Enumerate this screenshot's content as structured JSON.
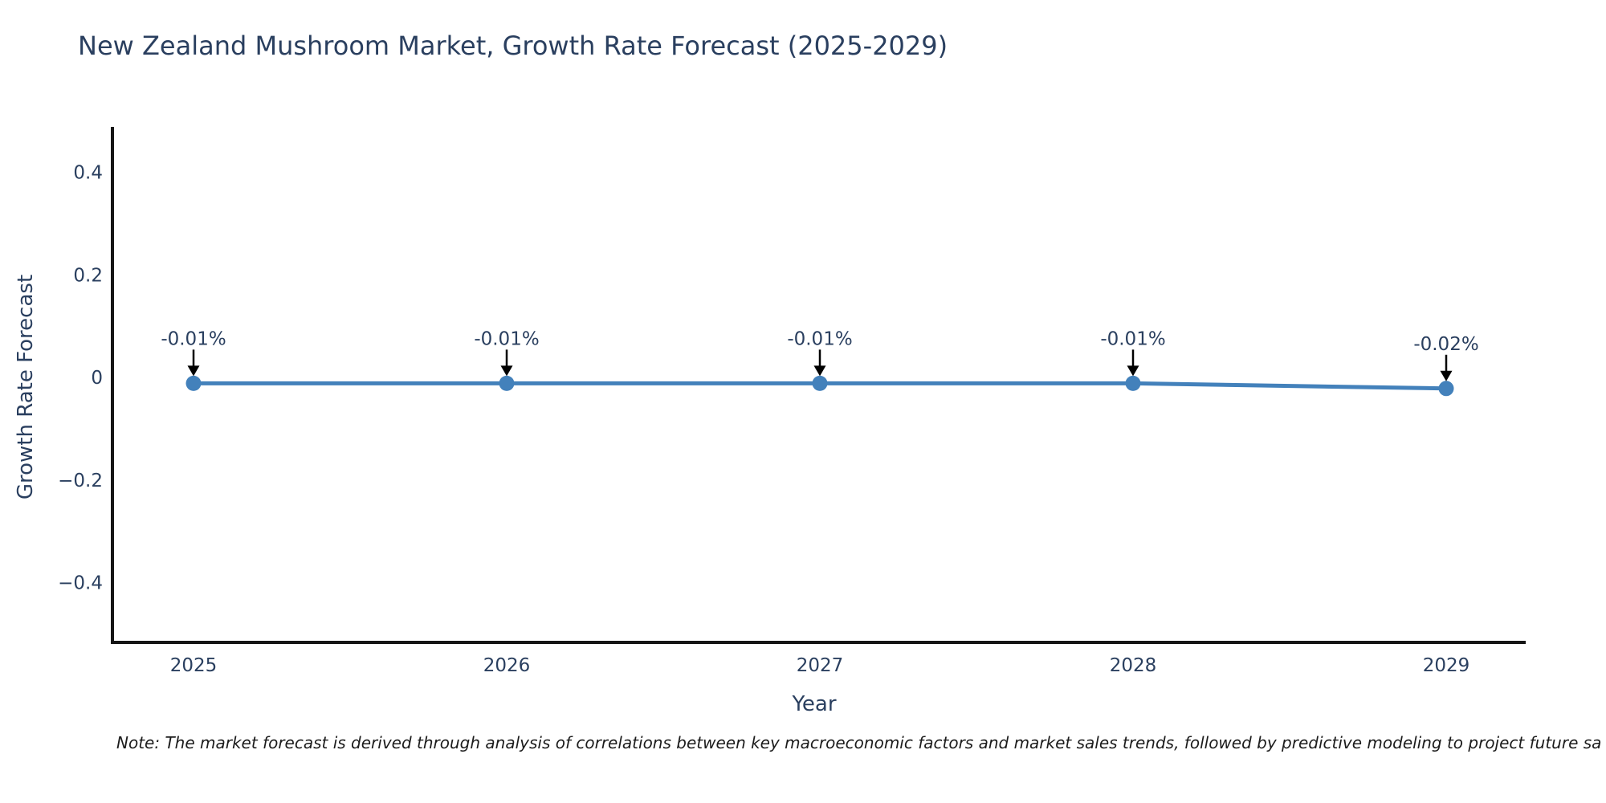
{
  "header": {
    "title": "New Zealand Mushroom Market, Growth Rate Forecast (2025-2029)"
  },
  "note": {
    "text": "Note: The market forecast is derived through analysis of correlations between key macroeconomic factors and market sales trends, followed by predictive modeling to project future sa"
  },
  "chart_data": {
    "type": "line",
    "title": "New Zealand Mushroom Market, Growth Rate Forecast (2025-2029)",
    "xlabel": "Year",
    "ylabel": "Growth Rate Forecast",
    "x": [
      2025,
      2026,
      2027,
      2028,
      2029
    ],
    "series": [
      {
        "name": "Growth Rate Forecast",
        "values": [
          -0.01,
          -0.01,
          -0.01,
          -0.01,
          -0.02
        ],
        "point_labels": [
          "-0.01%",
          "-0.01%",
          "-0.01%",
          "-0.01%",
          "-0.02%"
        ]
      }
    ],
    "xtick_labels": [
      "2025",
      "2026",
      "2027",
      "2028",
      "2029"
    ],
    "ytick_values": [
      0.4,
      0.2,
      0,
      -0.2,
      -0.4
    ],
    "ytick_labels": [
      "0.4",
      "0.2",
      "0",
      "−0.2",
      "−0.4"
    ],
    "ylim": [
      -0.515,
      0.49
    ],
    "grid": false,
    "legend": false,
    "colors": {
      "line": "#4381bb",
      "marker": "#4381bb",
      "axis": "#151515",
      "tick_text": "#2a3f5f",
      "annotation_text": "#2a3f5f",
      "arrow": "#000000"
    }
  }
}
